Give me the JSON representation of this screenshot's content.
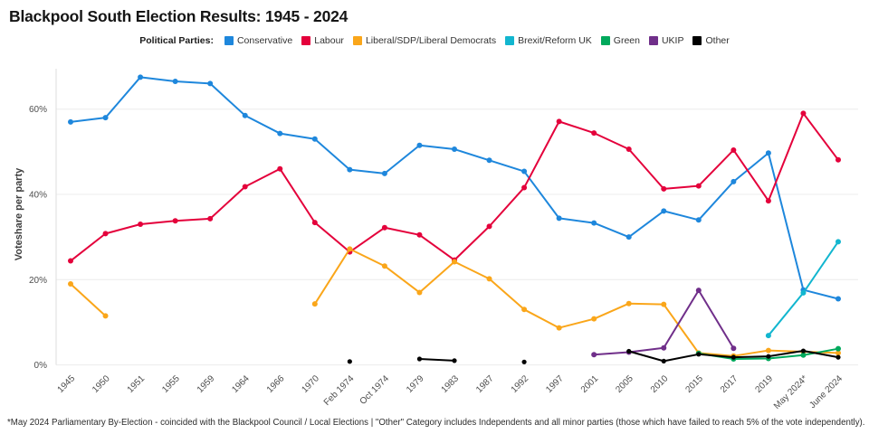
{
  "chart_data": {
    "type": "line",
    "title": "Blackpool South Election Results: 1945 - 2024",
    "legend_title": "Political Parties:",
    "ylabel": "Voteshare per party",
    "xlabel": "",
    "yticks": [
      0,
      20,
      40,
      60
    ],
    "ytick_suffix": "%",
    "ylim": [
      0,
      70
    ],
    "grid": true,
    "legend_position": "top",
    "categories": [
      "1945",
      "1950",
      "1951",
      "1955",
      "1959",
      "1964",
      "1966",
      "1970",
      "Feb 1974",
      "Oct 1974",
      "1979",
      "1983",
      "1987",
      "1992",
      "1997",
      "2001",
      "2005",
      "2010",
      "2015",
      "2017",
      "2019",
      "May 2024*",
      "June 2024"
    ],
    "series": [
      {
        "name": "Conservative",
        "color": "#1E87DC",
        "values": [
          57,
          58,
          67.5,
          66.5,
          66,
          58.5,
          54.3,
          53,
          45.8,
          44.9,
          51.5,
          50.6,
          48,
          45.4,
          34.4,
          33.3,
          30,
          36.1,
          34,
          43,
          49.7,
          17.6,
          15.5
        ]
      },
      {
        "name": "Labour",
        "color": "#E4003B",
        "values": [
          24.4,
          30.8,
          33,
          33.8,
          34.3,
          41.8,
          46,
          33.4,
          26.5,
          32.2,
          30.5,
          24.6,
          32.5,
          41.6,
          57.1,
          54.4,
          50.6,
          41.3,
          42,
          50.4,
          38.5,
          59,
          48.1
        ]
      },
      {
        "name": "Liberal/SDP/Liberal Democrats",
        "color": "#FAA61A",
        "values": [
          19,
          11.5,
          null,
          null,
          null,
          null,
          null,
          14.3,
          27.2,
          23.2,
          17,
          24.2,
          20.2,
          13,
          8.7,
          10.8,
          14.4,
          14.2,
          2.8,
          2.1,
          3.4,
          3.1,
          2.8
        ]
      },
      {
        "name": "Brexit/Reform UK",
        "color": "#12B6CF",
        "values": [
          null,
          null,
          null,
          null,
          null,
          null,
          null,
          null,
          null,
          null,
          null,
          null,
          null,
          null,
          null,
          null,
          null,
          null,
          null,
          null,
          6.9,
          16.9,
          28.9
        ]
      },
      {
        "name": "Green",
        "color": "#00A95C",
        "values": [
          null,
          null,
          null,
          null,
          null,
          null,
          null,
          null,
          null,
          null,
          null,
          null,
          null,
          null,
          null,
          null,
          null,
          null,
          2.7,
          1.4,
          1.5,
          2.3,
          3.8
        ]
      },
      {
        "name": "UKIP",
        "color": "#702F8A",
        "values": [
          null,
          null,
          null,
          null,
          null,
          null,
          null,
          null,
          null,
          null,
          null,
          null,
          null,
          null,
          null,
          2.4,
          3.0,
          4.0,
          17.5,
          3.9,
          null,
          null,
          null
        ]
      },
      {
        "name": "Other",
        "color": "#000000",
        "values": [
          null,
          null,
          null,
          null,
          null,
          null,
          null,
          null,
          0.8,
          null,
          1.4,
          1.0,
          null,
          0.7,
          null,
          null,
          3.2,
          0.9,
          2.5,
          1.8,
          2.0,
          3.3,
          1.8
        ]
      }
    ],
    "footnote": "*May 2024 Parliamentary By-Election - coincided with the Blackpool Council / Local Elections | \"Other\" Category includes Independents and all minor parties (those which have failed to reach 5% of the vote independently)."
  }
}
